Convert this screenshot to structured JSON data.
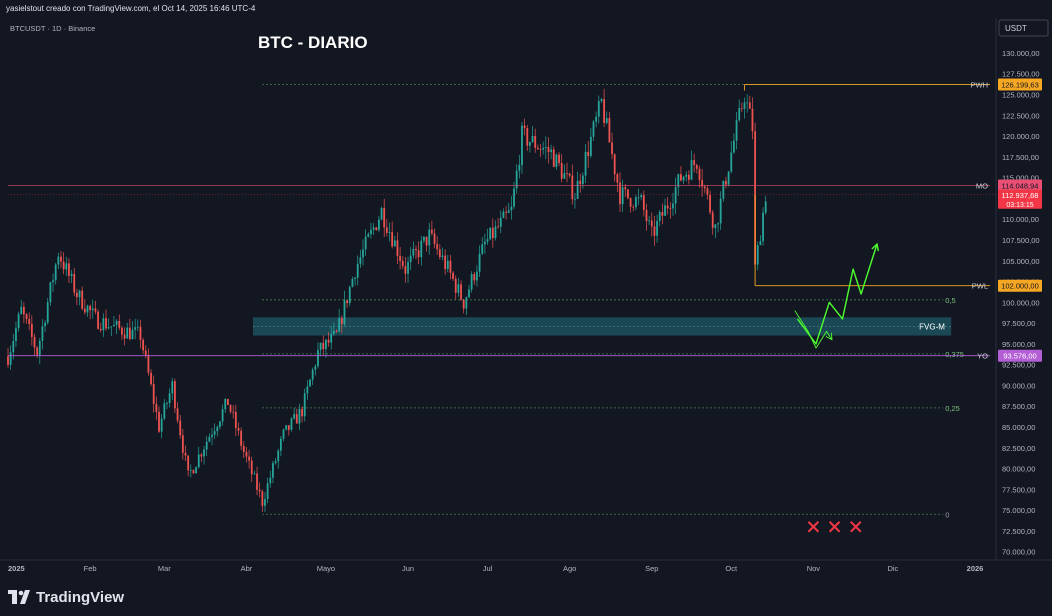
{
  "header": {
    "caption": "yasielstout creado con TradingView.com, el Oct 14, 2025 16:46 UTC-4",
    "symbol_line": "BTCUSDT · 1D · Binance",
    "currency_button": "USDT"
  },
  "footer": {
    "brand": "TradingView"
  },
  "colors": {
    "background": "#131722",
    "candle_up": "#26a69a",
    "candle_down": "#ef5350",
    "fvg_zone": "#1e5a66",
    "projection": "#4cff2e",
    "pwh_line": "#f5a623",
    "mo_line": "#e84f73",
    "yo_line": "#b45fd6",
    "fib_line": "#5b9a5b",
    "x_marks": "#f23645"
  },
  "chart_data": {
    "type": "candlestick",
    "title": "BTC - DIARIO",
    "ylim": [
      69000,
      133000
    ],
    "y_ticks": [
      "130.000,00",
      "127.500,00",
      "125.000,00",
      "122.500,00",
      "120.000,00",
      "117.500,00",
      "115.000,00",
      "112.500,00",
      "110.000,00",
      "107.500,00",
      "105.000,00",
      "102.500,00",
      "100.000,00",
      "97.500,00",
      "95.000,00",
      "92.500,00",
      "90.000,00",
      "87.500,00",
      "85.000,00",
      "82.500,00",
      "80.000,00",
      "77.500,00",
      "75.000,00",
      "72.500,00",
      "70.000,00"
    ],
    "x_ticks": [
      "2025",
      "Feb",
      "Mar",
      "Abr",
      "Mayo",
      "Jun",
      "Jul",
      "Ago",
      "Sep",
      "Oct",
      "Nov",
      "Dic",
      "2026"
    ],
    "price_path": [
      [
        "2025-01-01",
        93500
      ],
      [
        "2025-01-06",
        99000
      ],
      [
        "2025-01-12",
        94000
      ],
      [
        "2025-01-20",
        106000
      ],
      [
        "2025-01-27",
        101000
      ],
      [
        "2025-02-03",
        98000
      ],
      [
        "2025-02-10",
        97000
      ],
      [
        "2025-02-20",
        96000
      ],
      [
        "2025-02-27",
        85000
      ],
      [
        "2025-03-04",
        90000
      ],
      [
        "2025-03-10",
        79000
      ],
      [
        "2025-03-18",
        84000
      ],
      [
        "2025-03-25",
        88000
      ],
      [
        "2025-03-31",
        82000
      ],
      [
        "2025-04-07",
        76000
      ],
      [
        "2025-04-15",
        84000
      ],
      [
        "2025-04-22",
        87000
      ],
      [
        "2025-04-28",
        94000
      ],
      [
        "2025-05-05",
        96000
      ],
      [
        "2025-05-12",
        104000
      ],
      [
        "2025-05-22",
        111000
      ],
      [
        "2025-05-31",
        104000
      ],
      [
        "2025-06-09",
        108000
      ],
      [
        "2025-06-16",
        104000
      ],
      [
        "2025-06-22",
        100000
      ],
      [
        "2025-06-30",
        107000
      ],
      [
        "2025-07-10",
        111000
      ],
      [
        "2025-07-14",
        120000
      ],
      [
        "2025-07-25",
        118000
      ],
      [
        "2025-08-03",
        113000
      ],
      [
        "2025-08-13",
        124000
      ],
      [
        "2025-08-20",
        113000
      ],
      [
        "2025-08-28",
        112000
      ],
      [
        "2025-09-01",
        108000
      ],
      [
        "2025-09-12",
        115000
      ],
      [
        "2025-09-18",
        117000
      ],
      [
        "2025-09-25",
        109000
      ],
      [
        "2025-10-01",
        118000
      ],
      [
        "2025-10-06",
        125000
      ],
      [
        "2025-10-09",
        121000
      ],
      [
        "2025-10-10",
        104000
      ],
      [
        "2025-10-14",
        113000
      ]
    ],
    "levels": [
      {
        "label": "PWH",
        "price": 126199.63,
        "price_label": "126.199,63",
        "color": "#f5a623",
        "start": "2025-10-06",
        "end": "2025-12-31",
        "style": "solid"
      },
      {
        "label": "MO",
        "price": 114048.94,
        "price_label": "114.048,94",
        "color": "#e84f73",
        "start": "2025-10-01",
        "end": "2025-12-31",
        "style": "solid"
      },
      {
        "label": "PWL",
        "price": 102000.0,
        "price_label": "102.000,00",
        "color": "#f5a623",
        "start": "2025-10-10",
        "end": "2025-12-31",
        "style": "solid"
      },
      {
        "label": "YO",
        "price": 93576.0,
        "price_label": "93.576,00",
        "color": "#b45fd6",
        "start": "2025-01-01",
        "end": "2025-12-31",
        "style": "solid"
      }
    ],
    "current_price": {
      "price": 112937.68,
      "price_label": "112.937,68",
      "countdown": "03:13:15",
      "color": "#f23645"
    },
    "fib_levels": [
      {
        "label": "0,5",
        "price": 100300
      },
      {
        "label": "0,375",
        "price": 93800
      },
      {
        "label": "0,25",
        "price": 87300
      },
      {
        "label": "0",
        "price": 74500
      }
    ],
    "fib_start": "2025-04-07",
    "fib_end": "2025-12-20",
    "ob_line": {
      "price": 126199.63,
      "start": "2025-04-07",
      "end": "2025-12-31"
    },
    "fvg_zone": {
      "label": "FVG-M",
      "top": 98200,
      "bottom": 96000,
      "start": "2025-04-07",
      "end": "2025-12-23"
    },
    "projection_main": [
      [
        "2025-10-26",
        98000
      ],
      [
        "2025-11-02",
        95000
      ],
      [
        "2025-11-07",
        100000
      ],
      [
        "2025-11-12",
        98000
      ],
      [
        "2025-11-16",
        104000
      ],
      [
        "2025-11-19",
        101000
      ],
      [
        "2025-11-25",
        107000
      ]
    ],
    "projection_small": [
      [
        "2025-10-25",
        99000
      ],
      [
        "2025-10-30",
        96500
      ],
      [
        "2025-11-02",
        94500
      ],
      [
        "2025-11-06",
        96500
      ],
      [
        "2025-11-08",
        95500
      ]
    ],
    "x_marks": [
      "2025-11-01",
      "2025-11-09",
      "2025-11-17"
    ],
    "x_marks_price": 73000
  }
}
